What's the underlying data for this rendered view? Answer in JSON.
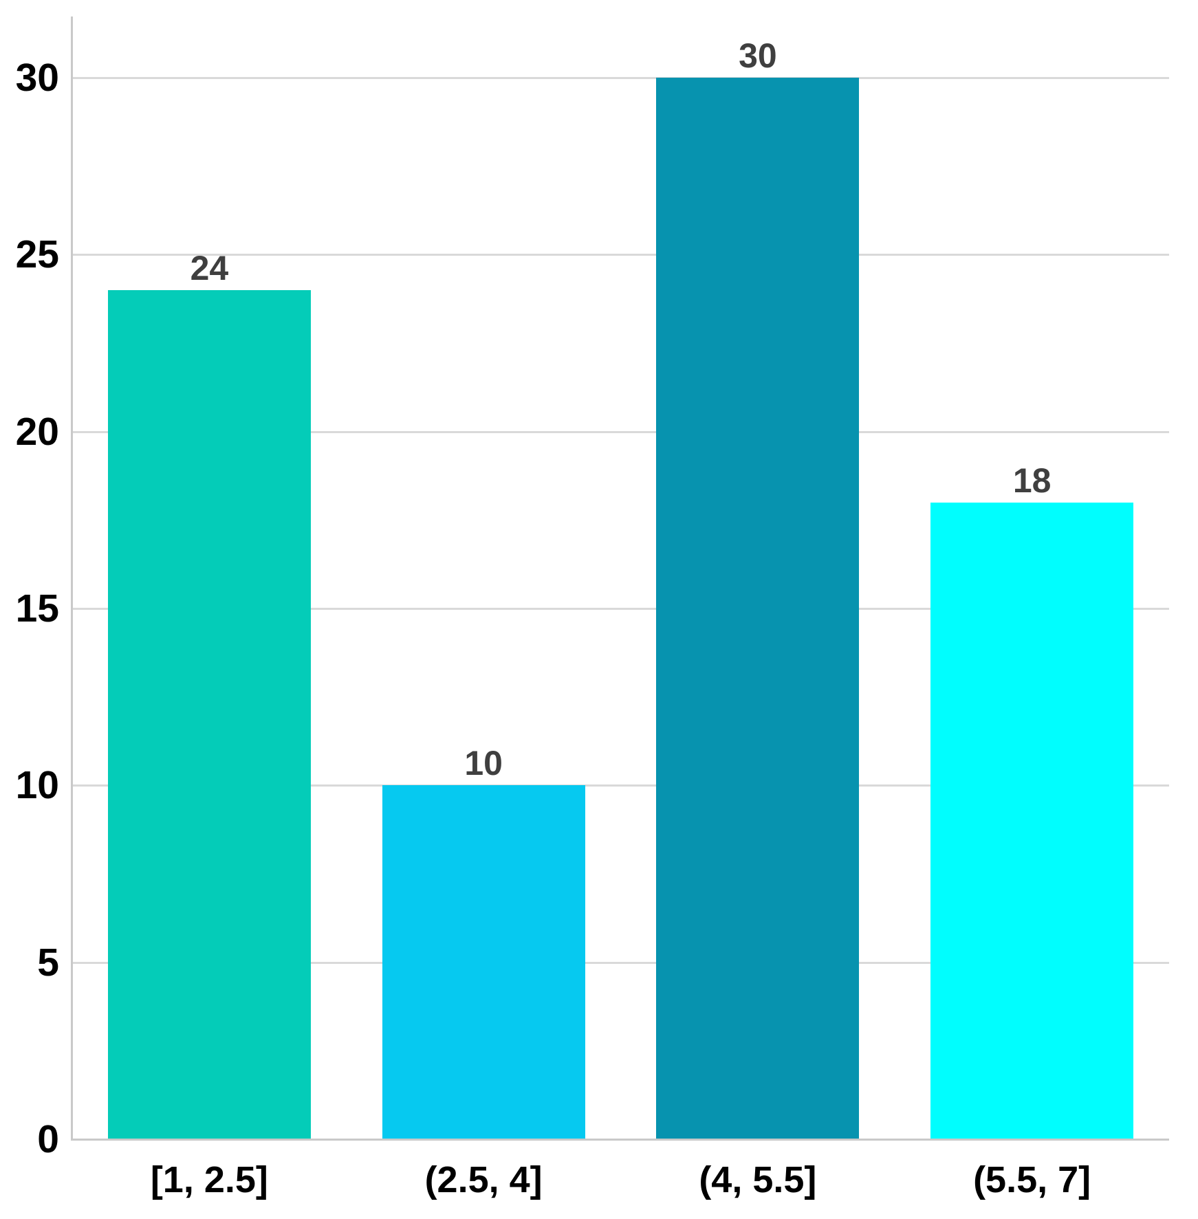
{
  "chart_data": {
    "type": "bar",
    "title": "",
    "xlabel": "",
    "ylabel": "",
    "categories": [
      "[1, 2.5]",
      "(2.5, 4]",
      "(4, 5.5]",
      "(5.5, 7]"
    ],
    "values": [
      24,
      10,
      30,
      18
    ],
    "value_labels": [
      "24",
      "10",
      "30",
      "18"
    ],
    "bar_colors": [
      "#04CCB8",
      "#06C9F0",
      "#0793AF",
      "#00FEFE"
    ],
    "yticks": [
      0,
      5,
      10,
      15,
      20,
      25,
      30
    ],
    "ylim": [
      0,
      31.7
    ],
    "grid": true,
    "legend": false,
    "colors": {
      "background": "#FFFFFF",
      "gridline": "#D9D9D9",
      "axis": "#C9C9C9",
      "tick_label": "#000000",
      "value_label": "#3F3F3F"
    }
  }
}
